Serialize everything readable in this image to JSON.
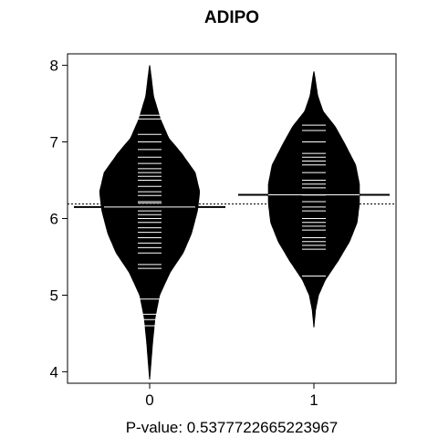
{
  "chart_data": {
    "type": "beanplot",
    "title": "ADIPO",
    "xlabel": "P-value: 0.5377722665223967",
    "ylabel": "",
    "categories": [
      "0",
      "1"
    ],
    "ylim": [
      3.85,
      8.15
    ],
    "y_ticks": [
      4,
      5,
      6,
      7,
      8
    ],
    "y_tick_labels": [
      "4",
      "5",
      "6",
      "7",
      "8"
    ],
    "grid": false,
    "legend": "none",
    "overall_mean": 6.19,
    "colors": {
      "bean_fill": "#000000",
      "observation_lines": "#ffffff",
      "background": "#ffffff"
    },
    "series": [
      {
        "group": "0",
        "mean": 6.15,
        "density": [
          [
            3.9,
            0.0
          ],
          [
            4.15,
            0.02
          ],
          [
            4.4,
            0.04
          ],
          [
            4.7,
            0.07
          ],
          [
            5.0,
            0.13
          ],
          [
            5.3,
            0.27
          ],
          [
            5.55,
            0.44
          ],
          [
            5.8,
            0.55
          ],
          [
            6.1,
            0.63
          ],
          [
            6.35,
            0.66
          ],
          [
            6.6,
            0.6
          ],
          [
            6.85,
            0.42
          ],
          [
            7.05,
            0.25
          ],
          [
            7.3,
            0.14
          ],
          [
            7.6,
            0.05
          ],
          [
            7.85,
            0.02
          ],
          [
            8.0,
            0.0
          ]
        ],
        "observations": [
          4.6,
          4.68,
          4.75,
          4.95,
          5.35,
          5.4,
          5.55,
          5.62,
          5.68,
          5.75,
          5.82,
          5.88,
          5.95,
          6.0,
          6.05,
          6.1,
          6.15,
          6.2,
          6.22,
          6.3,
          6.35,
          6.42,
          6.5,
          6.55,
          6.6,
          6.65,
          6.72,
          6.8,
          6.9,
          7.0,
          7.1,
          7.3,
          7.35
        ]
      },
      {
        "group": "1",
        "mean": 6.31,
        "density": [
          [
            4.58,
            0.0
          ],
          [
            4.8,
            0.02
          ],
          [
            5.0,
            0.06
          ],
          [
            5.2,
            0.15
          ],
          [
            5.45,
            0.32
          ],
          [
            5.7,
            0.47
          ],
          [
            5.95,
            0.57
          ],
          [
            6.2,
            0.6
          ],
          [
            6.45,
            0.6
          ],
          [
            6.7,
            0.55
          ],
          [
            6.95,
            0.42
          ],
          [
            7.2,
            0.28
          ],
          [
            7.4,
            0.12
          ],
          [
            7.6,
            0.05
          ],
          [
            7.8,
            0.02
          ],
          [
            7.92,
            0.0
          ]
        ],
        "observations": [
          5.25,
          5.6,
          5.65,
          5.7,
          5.75,
          5.85,
          5.9,
          5.95,
          6.0,
          6.1,
          6.15,
          6.22,
          6.3,
          6.4,
          6.45,
          6.5,
          6.6,
          6.7,
          6.75,
          6.8,
          6.85,
          7.0,
          7.15,
          7.22
        ]
      }
    ]
  }
}
